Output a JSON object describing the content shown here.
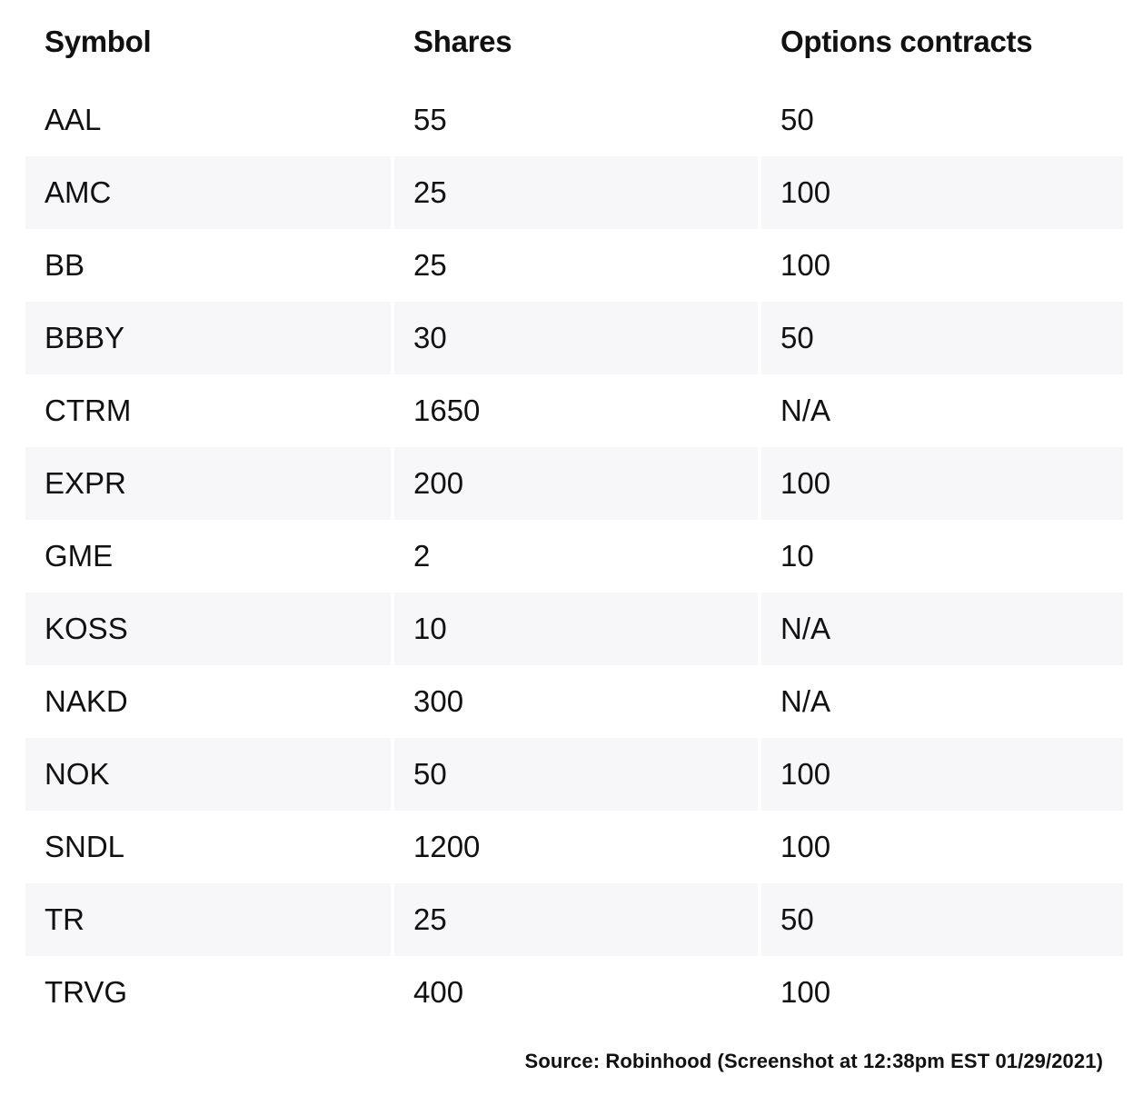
{
  "table": {
    "headers": [
      "Symbol",
      "Shares",
      "Options contracts"
    ],
    "rows": [
      [
        "AAL",
        "55",
        "50"
      ],
      [
        "AMC",
        "25",
        "100"
      ],
      [
        "BB",
        "25",
        "100"
      ],
      [
        "BBBY",
        "30",
        "50"
      ],
      [
        "CTRM",
        "1650",
        "N/A"
      ],
      [
        "EXPR",
        "200",
        "100"
      ],
      [
        "GME",
        "2",
        "10"
      ],
      [
        "KOSS",
        "10",
        "N/A"
      ],
      [
        "NAKD",
        "300",
        "N/A"
      ],
      [
        "NOK",
        "50",
        "100"
      ],
      [
        "SNDL",
        "1200",
        "100"
      ],
      [
        "TR",
        "25",
        "50"
      ],
      [
        "TRVG",
        "400",
        "100"
      ]
    ]
  },
  "footer": {
    "source": "Source: Robinhood (Screenshot at 12:38pm EST 01/29/2021)"
  },
  "colors": {
    "text": "#111111",
    "row_stripe": "#f7f7fa",
    "background": "#ffffff"
  }
}
